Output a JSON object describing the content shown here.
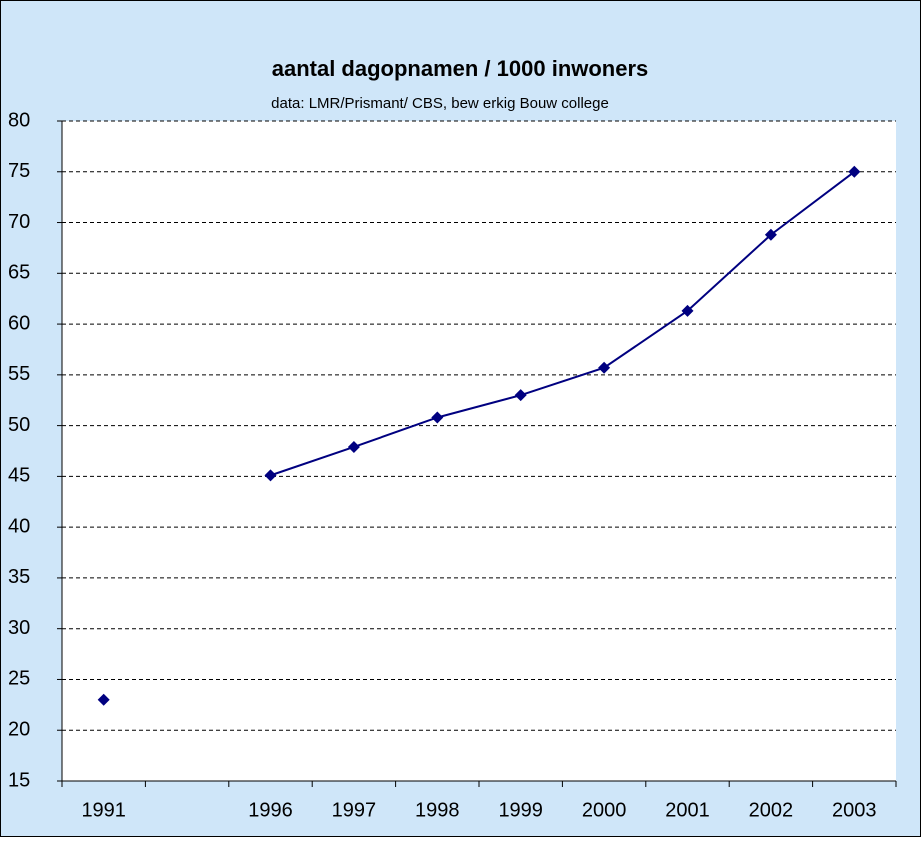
{
  "chart_data": {
    "type": "line",
    "title": "aantal dagopnamen / 1000 inwoners",
    "subtitle": "data: LMR/Prismant/ CBS, bew erkig Bouw college",
    "categories": [
      "1991",
      null,
      "1996",
      "1997",
      "1998",
      "1999",
      "2000",
      "2001",
      "2002",
      "2003"
    ],
    "series": [
      {
        "name": "dagopnamen",
        "color": "#000080",
        "values": [
          23,
          null,
          45.1,
          47.9,
          50.8,
          53,
          55.7,
          61.3,
          68.8,
          75
        ]
      }
    ],
    "ylim": [
      15,
      80
    ],
    "yticks": [
      15,
      20,
      25,
      30,
      35,
      40,
      45,
      50,
      55,
      60,
      65,
      70,
      75,
      80
    ],
    "grid": true
  }
}
